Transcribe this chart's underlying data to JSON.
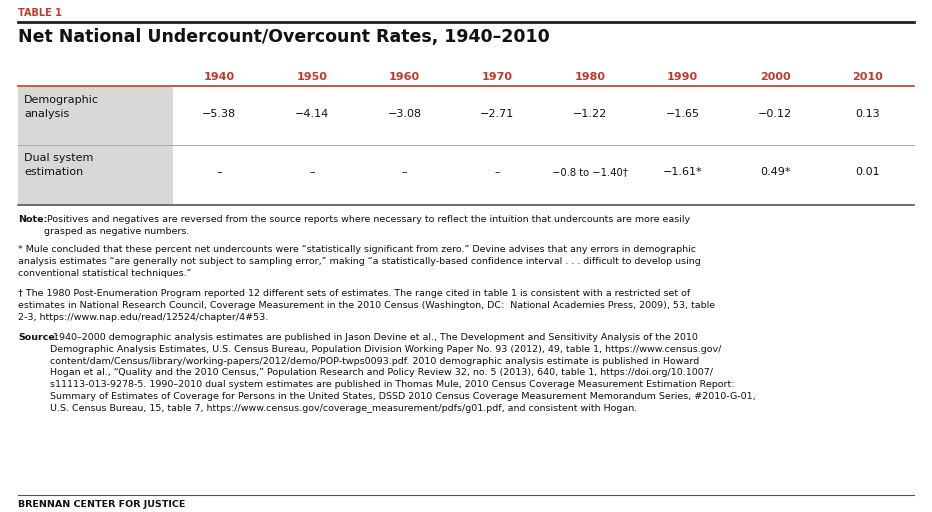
{
  "table_label": "TABLE 1",
  "title": "Net National Undercount/Overcount Rates, 1940–2010",
  "years": [
    "1940",
    "1950",
    "1960",
    "1970",
    "1980",
    "1990",
    "2000",
    "2010"
  ],
  "row1_label": "Demographic\nanalysis",
  "row1_values": [
    "−5.38",
    "−4.14",
    "−3.08",
    "−2.71",
    "−1.22",
    "−1.65",
    "−0.12",
    "0.13"
  ],
  "row2_label": "Dual system\nestimation",
  "row2_values": [
    "–",
    "–",
    "–",
    "–",
    "−0.8 to −1.40†",
    "−1.61*",
    "0.49*",
    "0.01"
  ],
  "note_bold": "Note:",
  "note_rest": " Positives and negatives are reversed from the source reports where necessary to reflect the intuition that undercounts are more easily\ngrasped as negative numbers.",
  "footnote1": "* Mule concluded that these percent net undercounts were “statistically significant from zero.” Devine advises that any errors in demographic\nanalysis estimates “are generally not subject to sampling error,” making “a statistically-based confidence interval . . . difficult to develop using\nconventional statistical techniques.”",
  "footnote2": "† The 1980 Post-Enumeration Program reported 12 different sets of estimates. The range cited in table 1 is consistent with a restricted set of\nestimates in National Research Council, Coverage Measurement in the 2010 Census (Washington, DC:  National Academies Press, 2009), 53, table\n2-3, https://www.nap.edu/read/12524/chapter/4#53.",
  "source_bold": "Source:",
  "source_rest": " 1940–2000 demographic analysis estimates are published in Jason Devine et al., The Development and Sensitivity Analysis of the 2010\nDemographic Analysis Estimates, U.S. Census Bureau, Population Division Working Paper No. 93 (2012), 49, table 1, https://www.census.gov/\ncontent/dam/Census/library/working-papers/2012/demo/POP-twps0093.pdf. 2010 demographic analysis estimate is published in Howard\nHogan et al., “Quality and the 2010 Census,” Population Research and Policy Review 32, no. 5 (2013), 640, table 1, https://doi.org/10.1007/\ns11113-013-9278-5. 1990–2010 dual system estimates are published in Thomas Mule, 2010 Census Coverage Measurement Estimation Report:\nSummary of Estimates of Coverage for Persons in the United States, DSSD 2010 Census Coverage Measurement Memorandum Series, #2010-G-01,\nU.S. Census Bureau, 15, table 7, https://www.census.gov/coverage_measurement/pdfs/g01.pdf, and consistent with Hogan.",
  "footer": "BRENNAN CENTER FOR JUSTICE",
  "year_color": "#c0392b",
  "bg_color": "#ffffff",
  "row_shade": "#d8d8d8",
  "text_color": "#111111",
  "link_color": "#1a5276"
}
